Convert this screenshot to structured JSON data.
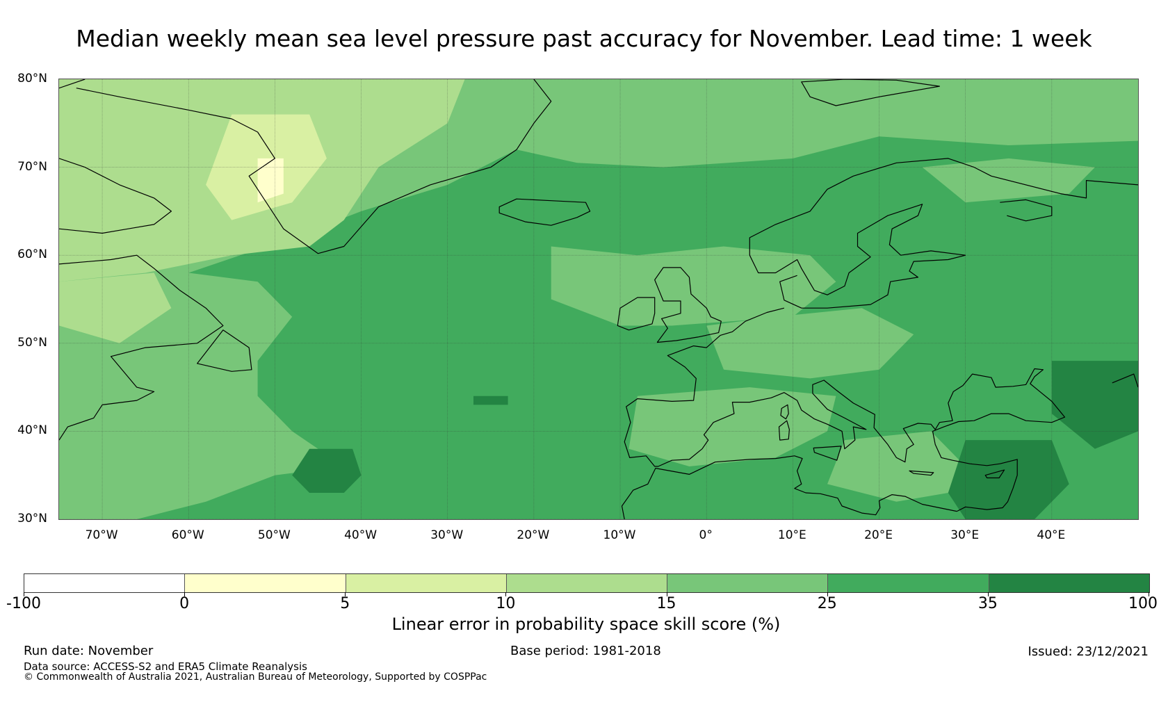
{
  "title": "Median weekly mean sea level pressure past accuracy for November. Lead time: 1 week",
  "map": {
    "region": "North Atlantic and Europe",
    "lat_range": [
      30,
      80
    ],
    "lon_range": [
      -75,
      50
    ],
    "lat_ticks": [
      "80°N",
      "70°N",
      "60°N",
      "50°N",
      "40°N",
      "30°N"
    ],
    "lat_values": [
      80,
      70,
      60,
      50,
      40,
      30
    ],
    "lon_ticks": [
      "70°W",
      "60°W",
      "50°W",
      "40°W",
      "30°W",
      "20°W",
      "10°W",
      "0°",
      "10°E",
      "20°E",
      "30°E",
      "40°E"
    ],
    "lon_values": [
      -70,
      -60,
      -50,
      -40,
      -30,
      -20,
      -10,
      0,
      10,
      20,
      30,
      40
    ],
    "dominant_category": "25 to 35",
    "notes": "Greenland interior and Labrador Sea mostly 5-15; open Atlantic 25-35; small 35-100 pockets near 36N 45W and over eastern Mediterranean / Black Sea."
  },
  "colorbar": {
    "title": "Linear error in probability space skill score (%)",
    "labels": [
      "-100",
      "0",
      "5",
      "10",
      "15",
      "25",
      "35",
      "100"
    ],
    "colors": [
      "#ffffff",
      "#ffffcc",
      "#d9f0a3",
      "#addd8e",
      "#78c679",
      "#41ab5d",
      "#238443"
    ]
  },
  "footer": {
    "run_date": "Run date: November",
    "base_period": "Base period: 1981-2018",
    "issued": "Issued: 23/12/2021",
    "data_source": "Data source: ACCESS-S2 and ERA5 Climate Reanalysis",
    "copyright": "© Commonwealth of Australia 2021, Australian Bureau of Meteorology, Supported by COSPPac"
  }
}
